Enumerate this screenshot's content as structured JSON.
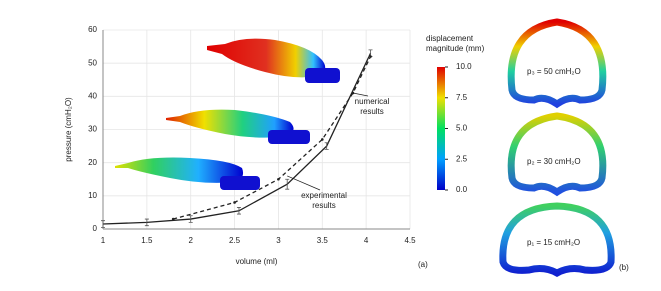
{
  "chart_data": {
    "type": "line",
    "xlabel": "volume (ml)",
    "ylabel": "pressure (cmH₂O)",
    "xlim": [
      1,
      4.5
    ],
    "xticks": [
      1,
      1.5,
      2,
      2.5,
      3,
      3.5,
      4,
      4.5
    ],
    "ylim": [
      0,
      60
    ],
    "yticks": [
      0,
      10,
      20,
      30,
      40,
      50,
      60
    ],
    "grid": true,
    "series": [
      {
        "name": "experimental results",
        "color": "#222222",
        "dash": false,
        "x": [
          1,
          1.5,
          2,
          2.55,
          3.1,
          3.55,
          4.05
        ],
        "values": [
          1.5,
          2,
          3,
          5.5,
          13.5,
          25,
          53
        ],
        "errors": [
          1,
          1,
          1,
          1,
          1.5,
          1,
          1
        ]
      },
      {
        "name": "numerical results",
        "color": "#222222",
        "dash": true,
        "x": [
          1.8,
          2.5,
          3,
          3.5,
          3.85,
          4.05
        ],
        "values": [
          3,
          8,
          15,
          27,
          41,
          52
        ]
      }
    ],
    "panel_label": "(a)",
    "colorbar": {
      "title": [
        "displacement",
        "magnitude (mm)"
      ],
      "lim": [
        0,
        10
      ],
      "ticks": [
        {
          "value": 10,
          "label": "10.0"
        },
        {
          "value": 7.5,
          "label": "7.5"
        },
        {
          "value": 5,
          "label": "5.0"
        },
        {
          "value": 2.5,
          "label": "2.5"
        },
        {
          "value": 0,
          "label": "0.0"
        }
      ]
    },
    "sections": {
      "panel_label": "(b)",
      "labels": [
        "p₃ = 50 cmH₂O",
        "p₂ = 30 cmH₂O",
        "p₁ = 15 cmH₂O"
      ]
    }
  }
}
